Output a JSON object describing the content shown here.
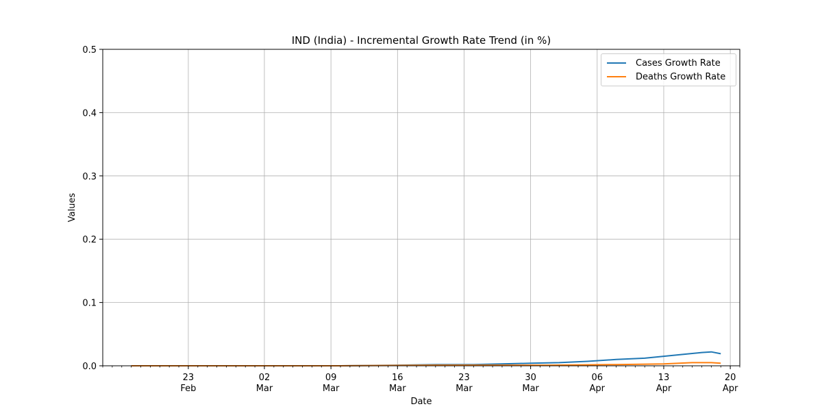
{
  "chart_data": {
    "type": "line",
    "title": "IND (India) - Incremental Growth Rate Trend (in %)",
    "xlabel": "Date",
    "ylabel": "Values",
    "x_range": [
      "2020-02-14",
      "2020-04-21"
    ],
    "ylim": [
      0,
      0.5
    ],
    "y_ticks": [
      0.0,
      0.1,
      0.2,
      0.3,
      0.4,
      0.5
    ],
    "y_tick_labels": [
      "0.0",
      "0.1",
      "0.2",
      "0.3",
      "0.4",
      "0.5"
    ],
    "x_ticks": [
      {
        "date": "2020-02-23",
        "day": "23",
        "month": "Feb"
      },
      {
        "date": "2020-03-02",
        "day": "02",
        "month": "Mar"
      },
      {
        "date": "2020-03-09",
        "day": "09",
        "month": "Mar"
      },
      {
        "date": "2020-03-16",
        "day": "16",
        "month": "Mar"
      },
      {
        "date": "2020-03-23",
        "day": "23",
        "month": "Mar"
      },
      {
        "date": "2020-03-30",
        "day": "30",
        "month": "Mar"
      },
      {
        "date": "2020-04-06",
        "day": "06",
        "month": "Apr"
      },
      {
        "date": "2020-04-13",
        "day": "13",
        "month": "Apr"
      },
      {
        "date": "2020-04-20",
        "day": "20",
        "month": "Apr"
      }
    ],
    "grid": true,
    "legend_position": "top-right",
    "series": [
      {
        "name": "Cases Growth Rate",
        "color": "#1f77b4",
        "points": [
          [
            "2020-02-17",
            0.0
          ],
          [
            "2020-03-01",
            0.0
          ],
          [
            "2020-03-10",
            0.0
          ],
          [
            "2020-03-16",
            0.001
          ],
          [
            "2020-03-20",
            0.002
          ],
          [
            "2020-03-24",
            0.002
          ],
          [
            "2020-03-27",
            0.003
          ],
          [
            "2020-03-30",
            0.004
          ],
          [
            "2020-04-02",
            0.005
          ],
          [
            "2020-04-05",
            0.007
          ],
          [
            "2020-04-08",
            0.01
          ],
          [
            "2020-04-11",
            0.012
          ],
          [
            "2020-04-13",
            0.015
          ],
          [
            "2020-04-15",
            0.018
          ],
          [
            "2020-04-17",
            0.021
          ],
          [
            "2020-04-18",
            0.022
          ],
          [
            "2020-04-19",
            0.019
          ]
        ]
      },
      {
        "name": "Deaths Growth Rate",
        "color": "#ff7f0e",
        "points": [
          [
            "2020-02-17",
            0.0
          ],
          [
            "2020-03-10",
            0.0
          ],
          [
            "2020-03-20",
            0.001
          ],
          [
            "2020-04-01",
            0.001
          ],
          [
            "2020-04-08",
            0.002
          ],
          [
            "2020-04-13",
            0.003
          ],
          [
            "2020-04-16",
            0.005
          ],
          [
            "2020-04-18",
            0.005
          ],
          [
            "2020-04-19",
            0.004
          ]
        ]
      }
    ]
  }
}
